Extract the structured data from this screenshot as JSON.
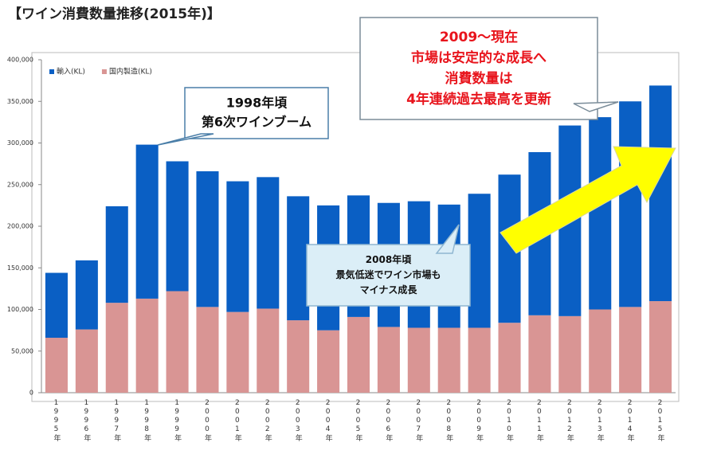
{
  "chart_data": {
    "type": "stacked_bar",
    "title": "【ワイン消費数量推移(2015年)】",
    "categories": [
      "1995年",
      "1996年",
      "1997年",
      "1998年",
      "1999年",
      "2000年",
      "2001年",
      "2002年",
      "2003年",
      "2004年",
      "2005年",
      "2006年",
      "2007年",
      "2008年",
      "2009年",
      "2010年",
      "2011年",
      "2012年",
      "2013年",
      "2014年",
      "2015年"
    ],
    "series": [
      {
        "name": "輸入(KL)",
        "color": "#0a5fc4",
        "values": [
          78000,
          83000,
          116000,
          185000,
          156000,
          163000,
          157000,
          158000,
          149000,
          150000,
          146000,
          149000,
          152000,
          148000,
          161000,
          178000,
          196000,
          229000,
          231000,
          247000,
          259000
        ]
      },
      {
        "name": "国内製造(KL)",
        "color": "#d99594",
        "values": [
          66000,
          76000,
          108000,
          113000,
          122000,
          103000,
          97000,
          101000,
          87000,
          75000,
          91000,
          79000,
          78000,
          78000,
          78000,
          84000,
          93000,
          92000,
          100000,
          103000,
          110000
        ]
      }
    ],
    "ylim": [
      0,
      400000
    ],
    "yticks": [
      0,
      {
        "value": 50000,
        "label": "50,000"
      },
      {
        "value": 100000,
        "label": "100,000"
      },
      {
        "value": 150000,
        "label": "150,000"
      },
      {
        "value": 200000,
        "label": "200,000"
      },
      {
        "value": 250000,
        "label": "250,000"
      },
      {
        "value": 300000,
        "label": "300,000"
      },
      {
        "value": 350000,
        "label": "350,000"
      },
      {
        "value": 400000,
        "label": "400,000"
      }
    ],
    "legend": "top-left",
    "annotations": [
      {
        "lines": [
          "1998年頃",
          "第6次ワインブーム"
        ],
        "color": "#111111"
      },
      {
        "lines": [
          "2009～現在",
          "市場は安定的な成長へ",
          "消費数量は",
          "4年連続過去最高を更新"
        ],
        "color": "#e8141c"
      },
      {
        "lines": [
          "2008年頃",
          "景気低迷でワイン市場も",
          "マイナス成長"
        ],
        "color": "#111111"
      }
    ]
  }
}
